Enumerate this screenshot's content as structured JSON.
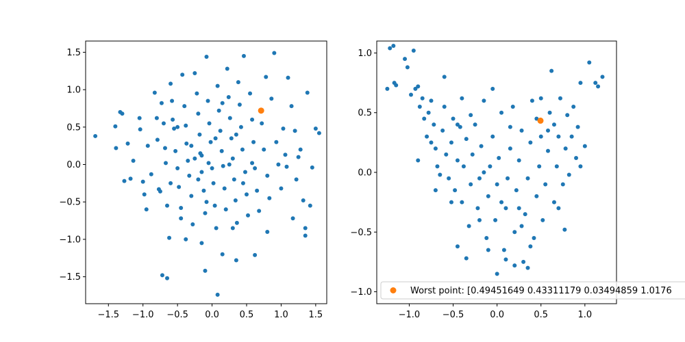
{
  "chart_data": [
    {
      "type": "scatter",
      "xlim": [
        -1.83,
        1.66
      ],
      "ylim": [
        -1.86,
        1.65
      ],
      "xticks": [
        -1.5,
        -1.0,
        -0.5,
        0.0,
        0.5,
        1.0,
        1.5
      ],
      "xtick_labels": [
        "−1.5",
        "−1.0",
        "−0.5",
        "0.0",
        "0.5",
        "1.0",
        "1.5"
      ],
      "yticks": [
        -1.5,
        -1.0,
        -0.5,
        0.0,
        0.5,
        1.0,
        1.5
      ],
      "ytick_labels": [
        "−1.5",
        "−1.0",
        "−0.5",
        "0.0",
        "0.5",
        "1.0",
        "1.5"
      ],
      "grid": false,
      "series": [
        {
          "color": "#1f77b4",
          "points": [
            [
              -1.69,
              0.38
            ],
            [
              -1.4,
              0.51
            ],
            [
              -1.39,
              0.22
            ],
            [
              -1.33,
              0.7
            ],
            [
              -1.3,
              0.68
            ],
            [
              -1.27,
              -0.22
            ],
            [
              -1.22,
              0.28
            ],
            [
              -1.18,
              -0.19
            ],
            [
              -1.14,
              0.05
            ],
            [
              -1.05,
              0.62
            ],
            [
              -1.04,
              0.47
            ],
            [
              -1.0,
              -0.23
            ],
            [
              -0.98,
              -0.4
            ],
            [
              -0.95,
              -0.6
            ],
            [
              -0.93,
              0.25
            ],
            [
              -0.88,
              -0.13
            ],
            [
              -0.83,
              0.96
            ],
            [
              -0.8,
              0.62
            ],
            [
              -0.79,
              0.33
            ],
            [
              -0.77,
              -0.33
            ],
            [
              -0.75,
              -0.36
            ],
            [
              -0.73,
              0.82
            ],
            [
              -0.7,
              0.55
            ],
            [
              -0.68,
              0.22
            ],
            [
              -0.67,
              0.02
            ],
            [
              -0.65,
              -0.55
            ],
            [
              -0.62,
              -0.98
            ],
            [
              -0.6,
              1.08
            ],
            [
              -0.58,
              0.85
            ],
            [
              -0.57,
              0.6
            ],
            [
              -0.55,
              0.48
            ],
            [
              -0.53,
              0.18
            ],
            [
              -0.5,
              -0.05
            ],
            [
              -0.48,
              -0.3
            ],
            [
              -0.45,
              -0.72
            ],
            [
              -0.43,
              1.2
            ],
            [
              -0.4,
              0.78
            ],
            [
              -0.38,
              0.52
            ],
            [
              -0.37,
              0.28
            ],
            [
              -0.35,
              0.05
            ],
            [
              -0.33,
              -0.15
            ],
            [
              -0.3,
              -0.42
            ],
            [
              -0.28,
              -0.8
            ],
            [
              -0.25,
              1.22
            ],
            [
              -0.22,
              0.95
            ],
            [
              -0.2,
              0.68
            ],
            [
              -0.18,
              0.4
            ],
            [
              -0.17,
              0.15
            ],
            [
              -0.15,
              -0.1
            ],
            [
              -0.12,
              -0.35
            ],
            [
              -0.1,
              -0.65
            ],
            [
              -0.08,
              1.44
            ],
            [
              -0.06,
              0.85
            ],
            [
              -0.04,
              0.55
            ],
            [
              -0.02,
              0.3
            ],
            [
              0.0,
              -0.05
            ],
            [
              0.02,
              -0.25
            ],
            [
              0.04,
              -0.55
            ],
            [
              0.06,
              -0.85
            ],
            [
              0.08,
              1.05
            ],
            [
              0.1,
              0.72
            ],
            [
              0.12,
              0.45
            ],
            [
              0.14,
              0.18
            ],
            [
              0.16,
              -0.02
            ],
            [
              0.18,
              -0.32
            ],
            [
              0.2,
              -0.6
            ],
            [
              0.22,
              1.28
            ],
            [
              0.24,
              0.9
            ],
            [
              0.26,
              0.62
            ],
            [
              0.28,
              0.35
            ],
            [
              0.3,
              0.08
            ],
            [
              0.32,
              -0.2
            ],
            [
              0.34,
              -0.48
            ],
            [
              0.36,
              -0.78
            ],
            [
              0.38,
              1.1
            ],
            [
              0.4,
              0.8
            ],
            [
              0.42,
              0.5
            ],
            [
              0.44,
              0.2
            ],
            [
              0.46,
              1.45
            ],
            [
              0.48,
              -0.1
            ],
            [
              0.5,
              -0.4
            ],
            [
              0.52,
              -0.68
            ],
            [
              0.55,
              0.95
            ],
            [
              0.58,
              0.6
            ],
            [
              0.6,
              0.3
            ],
            [
              0.62,
              -0.05
            ],
            [
              0.65,
              -0.35
            ],
            [
              0.68,
              -0.62
            ],
            [
              0.72,
              0.55
            ],
            [
              0.75,
              0.2
            ],
            [
              0.78,
              1.17
            ],
            [
              0.8,
              -0.15
            ],
            [
              0.83,
              -0.45
            ],
            [
              0.86,
              0.88
            ],
            [
              0.9,
              1.49
            ],
            [
              0.93,
              0.3
            ],
            [
              0.96,
              0.0
            ],
            [
              1.0,
              -0.32
            ],
            [
              1.03,
              0.48
            ],
            [
              1.06,
              0.13
            ],
            [
              1.08,
              -0.03
            ],
            [
              1.1,
              1.16
            ],
            [
              1.15,
              0.78
            ],
            [
              1.17,
              -0.72
            ],
            [
              1.2,
              0.45
            ],
            [
              1.22,
              -0.2
            ],
            [
              1.25,
              0.1
            ],
            [
              1.28,
              0.2
            ],
            [
              1.32,
              -0.48
            ],
            [
              1.35,
              -0.85
            ],
            [
              1.38,
              0.96
            ],
            [
              1.42,
              -0.55
            ],
            [
              1.45,
              -0.04
            ],
            [
              1.5,
              0.48
            ],
            [
              1.55,
              0.42
            ],
            [
              -0.72,
              -1.48
            ],
            [
              -0.65,
              -1.52
            ],
            [
              -0.1,
              -1.42
            ],
            [
              0.08,
              -1.74
            ],
            [
              0.62,
              -1.21
            ],
            [
              0.35,
              -1.28
            ],
            [
              0.15,
              -1.2
            ],
            [
              -0.15,
              -1.05
            ],
            [
              -0.38,
              -1.0
            ],
            [
              1.35,
              -0.95
            ],
            [
              0.8,
              -0.9
            ],
            [
              -0.25,
              0.08
            ],
            [
              -0.05,
              0.02
            ],
            [
              0.25,
              0.0
            ],
            [
              -0.6,
              -0.25
            ],
            [
              -0.3,
              0.25
            ],
            [
              0.05,
              0.35
            ],
            [
              0.35,
              0.4
            ],
            [
              -0.45,
              -0.58
            ],
            [
              0.15,
              0.82
            ],
            [
              -0.15,
              0.12
            ],
            [
              0.45,
              -0.25
            ],
            [
              -0.08,
              -0.5
            ],
            [
              0.3,
              -0.85
            ],
            [
              -0.5,
              0.5
            ],
            [
              0.58,
              0.02
            ],
            [
              -0.2,
              -0.2
            ]
          ]
        },
        {
          "color": "#ff7f0e",
          "points": [
            [
              0.71,
              0.72
            ]
          ]
        }
      ]
    },
    {
      "type": "scatter",
      "xlim": [
        -1.37,
        1.36
      ],
      "ylim": [
        -1.1,
        1.1
      ],
      "xticks": [
        -1.0,
        -0.5,
        0.0,
        0.5,
        1.0
      ],
      "xtick_labels": [
        "−1.0",
        "−0.5",
        "0.0",
        "0.5",
        "1.0"
      ],
      "yticks": [
        -1.0,
        -0.5,
        0.0,
        0.5,
        1.0
      ],
      "ytick_labels": [
        "−1.0",
        "−0.5",
        "0.0",
        "0.5",
        "1.0"
      ],
      "grid": false,
      "legend": {
        "placement": "lower-left",
        "label": "Worst point: [0.49451649 0.43311179 0.03494859 1.0176"
      },
      "series": [
        {
          "color": "#1f77b4",
          "points": [
            [
              -1.25,
              0.7
            ],
            [
              -1.22,
              1.04
            ],
            [
              -1.18,
              1.06
            ],
            [
              -1.17,
              0.75
            ],
            [
              -1.15,
              0.73
            ],
            [
              -1.05,
              0.95
            ],
            [
              -1.02,
              0.88
            ],
            [
              -0.98,
              0.65
            ],
            [
              -0.95,
              1.02
            ],
            [
              -0.93,
              0.7
            ],
            [
              -0.9,
              0.72
            ],
            [
              -0.88,
              0.55
            ],
            [
              -0.85,
              0.62
            ],
            [
              -0.83,
              0.45
            ],
            [
              -0.8,
              0.3
            ],
            [
              -0.78,
              0.5
            ],
            [
              -0.75,
              0.6
            ],
            [
              -0.72,
              0.4
            ],
            [
              -0.7,
              0.2
            ],
            [
              -0.68,
              0.05
            ],
            [
              -0.65,
              -0.02
            ],
            [
              -0.62,
              0.35
            ],
            [
              -0.6,
              0.55
            ],
            [
              -0.58,
              0.15
            ],
            [
              -0.55,
              -0.05
            ],
            [
              -0.52,
              0.25
            ],
            [
              -0.5,
              0.45
            ],
            [
              -0.48,
              -0.15
            ],
            [
              -0.45,
              0.1
            ],
            [
              -0.42,
              0.38
            ],
            [
              -0.4,
              -0.25
            ],
            [
              -0.38,
              0.05
            ],
            [
              -0.35,
              0.28
            ],
            [
              -0.32,
              -0.45
            ],
            [
              -0.3,
              -0.1
            ],
            [
              -0.28,
              0.15
            ],
            [
              -0.25,
              0.4
            ],
            [
              -0.22,
              -0.3
            ],
            [
              -0.2,
              -0.05
            ],
            [
              -0.18,
              0.22
            ],
            [
              -0.15,
              0.6
            ],
            [
              -0.12,
              -0.55
            ],
            [
              -0.1,
              -0.2
            ],
            [
              -0.08,
              0.05
            ],
            [
              -0.05,
              0.3
            ],
            [
              -0.02,
              -0.4
            ],
            [
              0.0,
              -0.1
            ],
            [
              0.02,
              0.12
            ],
            [
              0.05,
              0.5
            ],
            [
              0.08,
              -0.65
            ],
            [
              0.1,
              -0.3
            ],
            [
              0.12,
              -0.05
            ],
            [
              0.15,
              0.2
            ],
            [
              0.18,
              0.55
            ],
            [
              0.2,
              -0.5
            ],
            [
              0.22,
              -0.15
            ],
            [
              0.25,
              0.1
            ],
            [
              0.28,
              0.35
            ],
            [
              0.3,
              -0.75
            ],
            [
              0.32,
              -0.35
            ],
            [
              0.35,
              -0.05
            ],
            [
              0.38,
              0.25
            ],
            [
              0.4,
              0.6
            ],
            [
              0.42,
              -0.55
            ],
            [
              0.45,
              -0.2
            ],
            [
              0.48,
              0.05
            ],
            [
              0.5,
              0.3
            ],
            [
              0.52,
              -0.4
            ],
            [
              0.55,
              -0.1
            ],
            [
              0.58,
              0.18
            ],
            [
              0.6,
              0.5
            ],
            [
              0.62,
              0.85
            ],
            [
              0.65,
              -0.25
            ],
            [
              0.68,
              0.05
            ],
            [
              0.7,
              0.3
            ],
            [
              0.72,
              0.62
            ],
            [
              0.75,
              -0.1
            ],
            [
              0.78,
              0.2
            ],
            [
              0.8,
              0.48
            ],
            [
              0.82,
              -0.02
            ],
            [
              0.85,
              0.3
            ],
            [
              0.87,
              0.55
            ],
            [
              0.9,
              0.12
            ],
            [
              0.92,
              0.38
            ],
            [
              0.95,
              0.75
            ],
            [
              1.0,
              0.22
            ],
            [
              1.05,
              0.92
            ],
            [
              1.12,
              0.75
            ],
            [
              1.15,
              0.72
            ],
            [
              1.2,
              0.8
            ],
            [
              0.77,
              -0.48
            ],
            [
              0.35,
              -0.8
            ],
            [
              0.1,
              -0.73
            ],
            [
              0.0,
              -0.85
            ],
            [
              -0.35,
              -0.72
            ],
            [
              -0.45,
              -0.62
            ],
            [
              0.2,
              -0.78
            ],
            [
              0.28,
              -0.45
            ],
            [
              -0.52,
              -0.25
            ],
            [
              -0.15,
              0.0
            ],
            [
              0.05,
              -0.25
            ],
            [
              -0.3,
              0.48
            ],
            [
              0.58,
              0.35
            ],
            [
              -0.7,
              -0.15
            ],
            [
              -0.05,
              0.7
            ],
            [
              0.45,
              0.45
            ],
            [
              -0.6,
              0.8
            ],
            [
              -0.9,
              0.1
            ],
            [
              0.7,
              -0.3
            ],
            [
              0.15,
              0.38
            ],
            [
              -0.2,
              -0.4
            ],
            [
              0.38,
              -0.62
            ],
            [
              -0.4,
              0.62
            ],
            [
              0.95,
              0.05
            ],
            [
              -0.75,
              0.25
            ],
            [
              0.5,
              0.62
            ],
            [
              -0.1,
              -0.65
            ],
            [
              0.25,
              -0.3
            ],
            [
              -0.45,
              0.4
            ],
            [
              0.65,
              0.4
            ]
          ]
        },
        {
          "color": "#ff7f0e",
          "points": [
            [
              0.4945,
              0.4331
            ]
          ]
        }
      ]
    }
  ]
}
